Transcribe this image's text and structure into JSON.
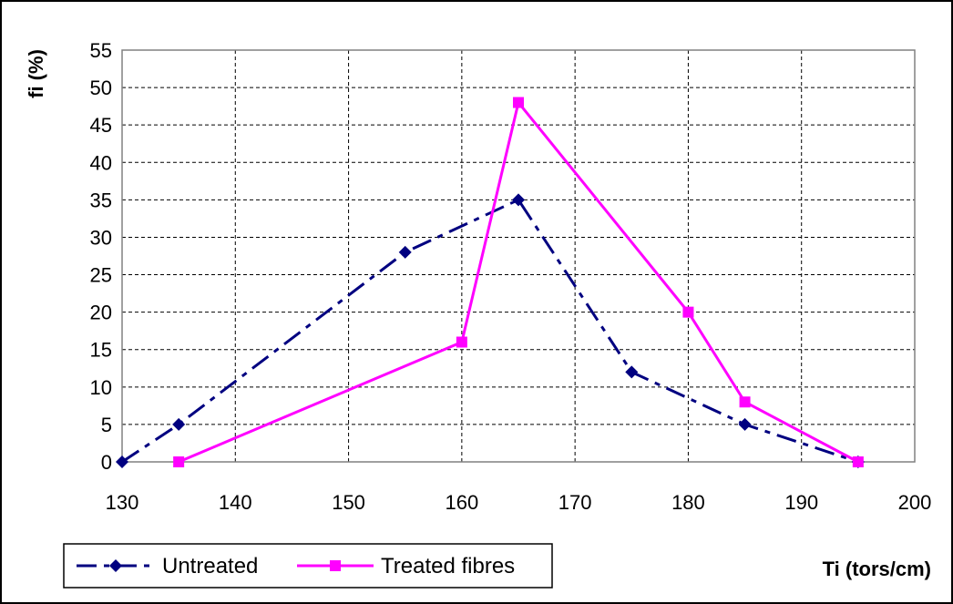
{
  "chart_data": {
    "type": "line",
    "title": "",
    "xlabel": "Ti (tors/cm)",
    "ylabel": "fi (%)",
    "xlim": [
      130,
      200
    ],
    "ylim": [
      0,
      55
    ],
    "xticks": [
      130,
      140,
      150,
      160,
      170,
      180,
      190,
      200
    ],
    "yticks": [
      0,
      5,
      10,
      15,
      20,
      25,
      30,
      35,
      40,
      45,
      50,
      55
    ],
    "grid": true,
    "legend": "bottom-left",
    "series": [
      {
        "name": "Untreated",
        "color": "#000080",
        "line_style": "dash-dot",
        "marker": "diamond",
        "x": [
          130,
          135,
          155,
          165,
          175,
          185,
          195
        ],
        "y": [
          0,
          5,
          28,
          35,
          12,
          5,
          0
        ]
      },
      {
        "name": "Treated fibres",
        "color": "#ff00ff",
        "line_style": "solid",
        "marker": "square",
        "x": [
          135,
          160,
          165,
          180,
          185,
          195
        ],
        "y": [
          0,
          16,
          48,
          20,
          8,
          0
        ]
      }
    ]
  }
}
